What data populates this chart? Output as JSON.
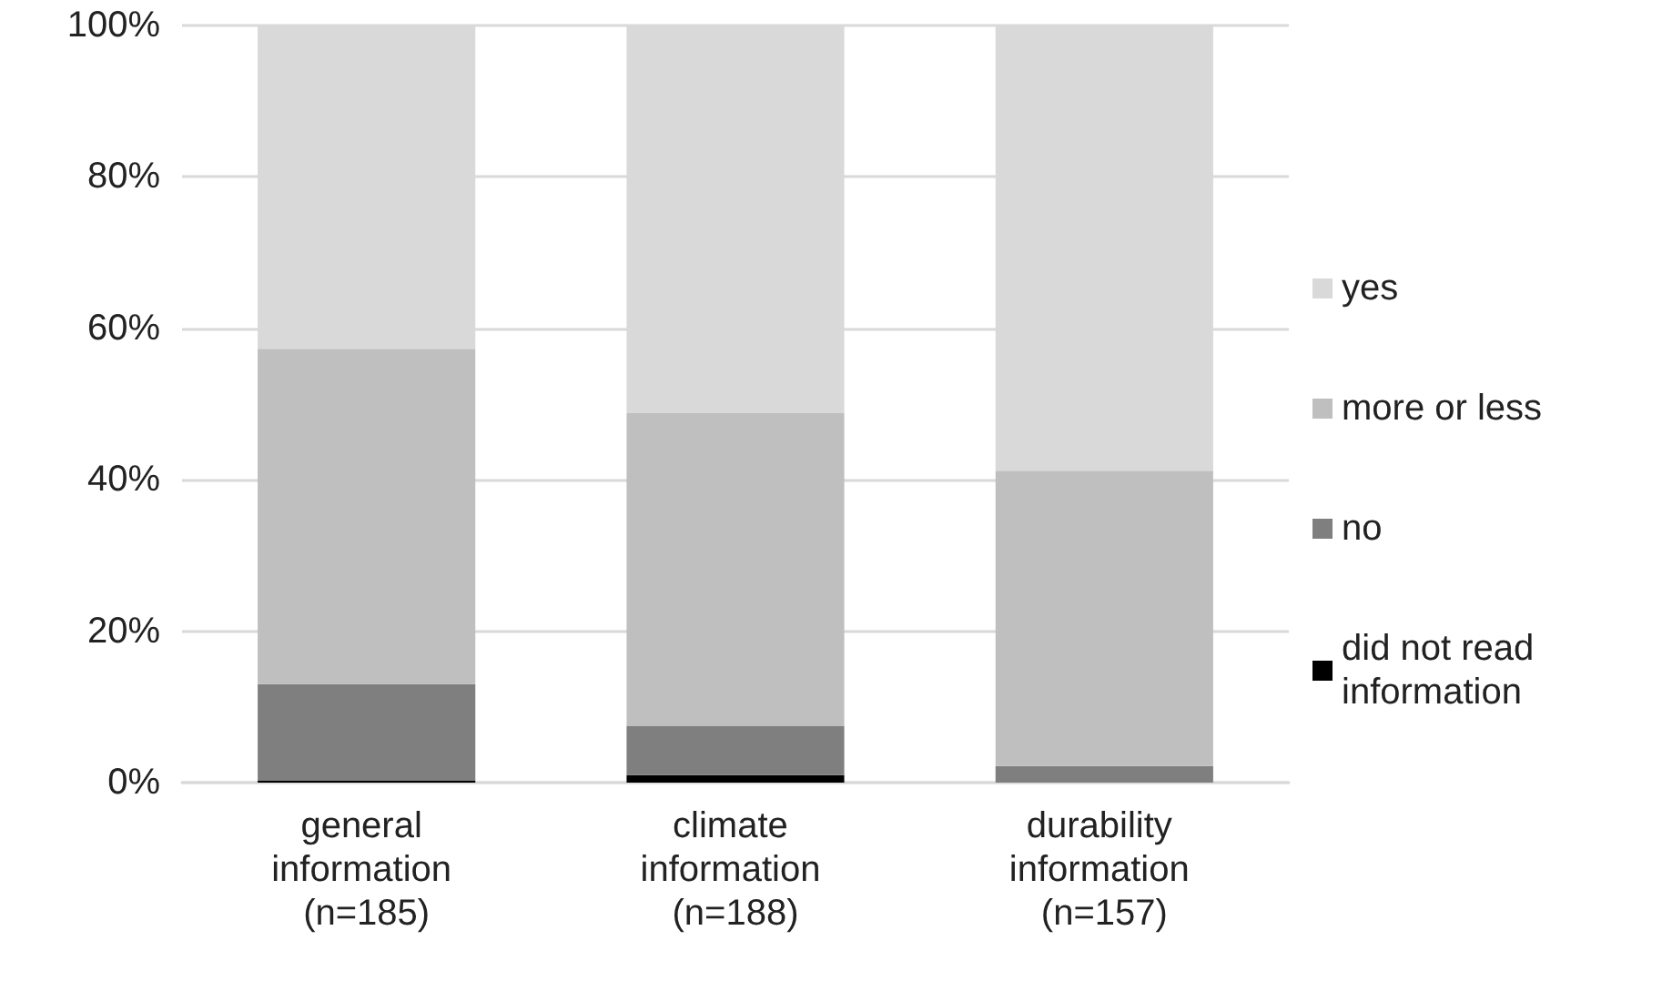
{
  "chart_data": {
    "type": "bar",
    "stacked": true,
    "categories": [
      "general information (n=185)",
      "climate information (n=188)",
      "durability information (n=157)"
    ],
    "series": [
      {
        "name": "did not read information",
        "color": "#000000",
        "values": [
          0.3,
          1.0,
          0
        ]
      },
      {
        "name": "no",
        "color": "#7f7f7f",
        "values": [
          12.7,
          6.5,
          2.2
        ]
      },
      {
        "name": "more or less",
        "color": "#bfbfbf",
        "values": [
          44.3,
          41.3,
          39.0
        ]
      },
      {
        "name": "yes",
        "color": "#d9d9d9",
        "values": [
          42.7,
          51.2,
          58.8
        ]
      }
    ],
    "ylim": [
      0,
      100
    ],
    "yticks": [
      {
        "value": 0,
        "label": "0%"
      },
      {
        "value": 20,
        "label": "20%"
      },
      {
        "value": 40,
        "label": "40%"
      },
      {
        "value": 60,
        "label": "60%"
      },
      {
        "value": 80,
        "label": "80%"
      },
      {
        "value": 100,
        "label": "100%"
      }
    ],
    "grid": "y",
    "legend": "right"
  }
}
